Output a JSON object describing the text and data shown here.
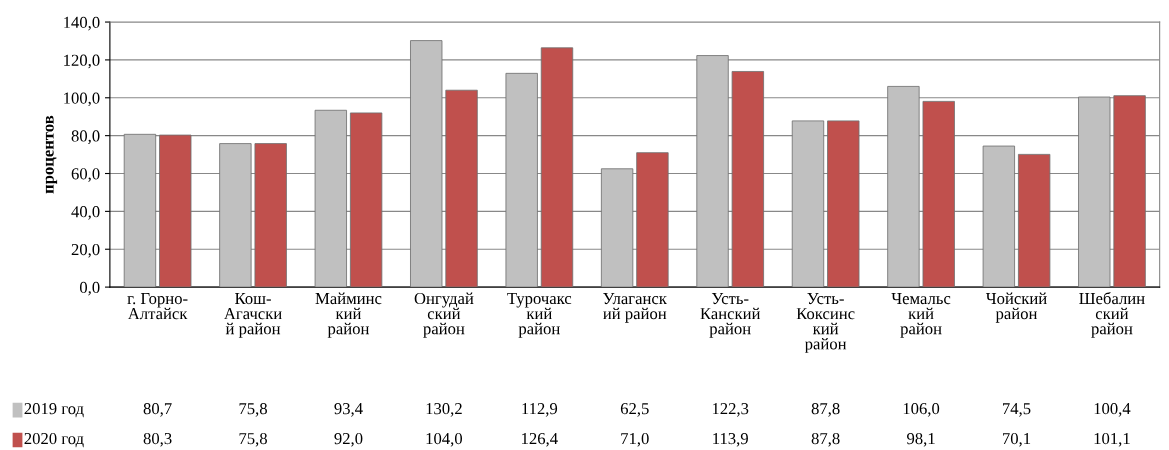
{
  "chart_data": {
    "type": "bar",
    "ylabel": "процентов",
    "categories": [
      "г. Горно-\nАлтайск",
      "Кош-\nАгачски\nй район",
      "Майминс\nкий\nрайон",
      "Онгудай\nский\nрайон",
      "Турочакс\nкий\nрайон",
      "Улаганск\nий район",
      "Усть-\nКанский\nрайон",
      "Усть-\nКоксинс\nкий\nрайон",
      "Чемальс\nкий\nрайон",
      "Чойский\nрайон",
      "Шебалин\nский\nрайон"
    ],
    "series": [
      {
        "name": "2019 год",
        "color": "#c0c0c0",
        "values": [
          80.7,
          75.8,
          93.4,
          130.2,
          112.9,
          62.5,
          122.3,
          87.8,
          106.0,
          74.5,
          100.4
        ],
        "value_labels": [
          "80,7",
          "75,8",
          "93,4",
          "130,2",
          "112,9",
          "62,5",
          "122,3",
          "87,8",
          "106,0",
          "74,5",
          "100,4"
        ]
      },
      {
        "name": "2020 год",
        "color": "#c0504d",
        "values": [
          80.3,
          75.8,
          92.0,
          104.0,
          126.4,
          71.0,
          113.9,
          87.8,
          98.1,
          70.1,
          101.1
        ],
        "value_labels": [
          "80,3",
          "75,8",
          "92,0",
          "104,0",
          "126,4",
          "71,0",
          "113,9",
          "87,8",
          "98,1",
          "70,1",
          "101,1"
        ]
      }
    ],
    "ylim": [
      0,
      140
    ],
    "yticks": [
      {
        "value": 0,
        "label": "0,0"
      },
      {
        "value": 20,
        "label": "20,0"
      },
      {
        "value": 40,
        "label": "40,0"
      },
      {
        "value": 60,
        "label": "60,0"
      },
      {
        "value": 80,
        "label": "80,0"
      },
      {
        "value": 100,
        "label": "100,0"
      },
      {
        "value": 120,
        "label": "120,0"
      },
      {
        "value": 140,
        "label": "140,0"
      }
    ],
    "grid": "y",
    "legend": "bottom left"
  }
}
